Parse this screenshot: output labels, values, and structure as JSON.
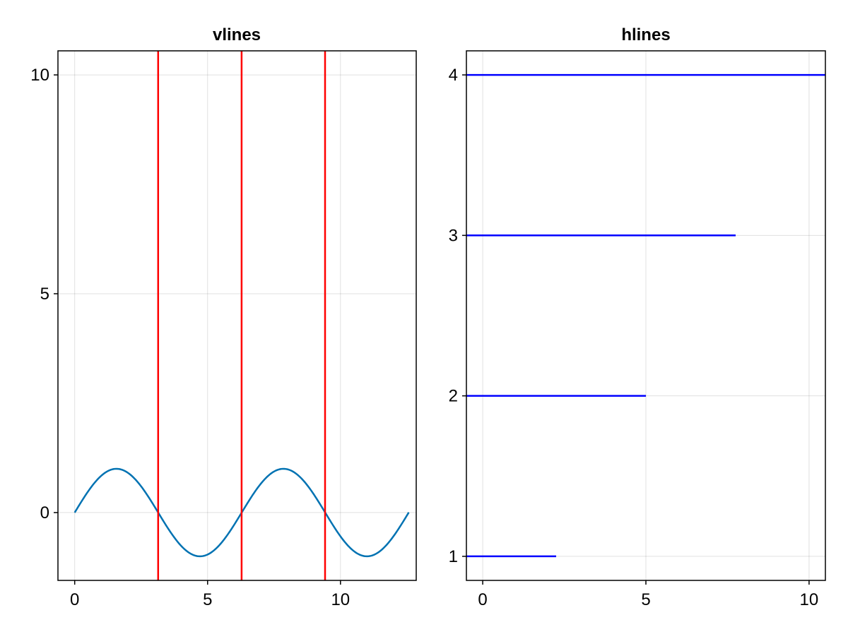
{
  "chart_data": [
    {
      "type": "line",
      "title": "vlines",
      "xlabel": "",
      "ylabel": "",
      "xlim": [
        -0.63,
        12.85
      ],
      "ylim": [
        -1.55,
        10.55
      ],
      "xticks": [
        0,
        5,
        10
      ],
      "yticks": [
        0,
        5,
        10
      ],
      "grid": true,
      "series": [
        {
          "kind": "curve",
          "function": "sin(x)",
          "x_range": [
            0,
            12.57
          ],
          "color": "#0072B2"
        },
        {
          "kind": "vlines",
          "x": [
            3.14,
            6.28,
            9.42
          ],
          "color": "#FF0000"
        }
      ]
    },
    {
      "type": "line",
      "title": "hlines",
      "xlabel": "",
      "ylabel": "",
      "xlim": [
        -0.5,
        10.5
      ],
      "ylim": [
        0.85,
        4.15
      ],
      "xticks": [
        0,
        5,
        10
      ],
      "yticks": [
        1,
        2,
        3,
        4
      ],
      "grid": true,
      "series": [
        {
          "kind": "hlines",
          "segments": [
            {
              "y": 1,
              "xmin": -0.5,
              "xmax": 2.25
            },
            {
              "y": 2,
              "xmin": -0.5,
              "xmax": 5.0
            },
            {
              "y": 3,
              "xmin": -0.5,
              "xmax": 7.75
            },
            {
              "y": 4,
              "xmin": -0.5,
              "xmax": 10.5
            }
          ],
          "color": "#0000FF"
        }
      ]
    }
  ]
}
